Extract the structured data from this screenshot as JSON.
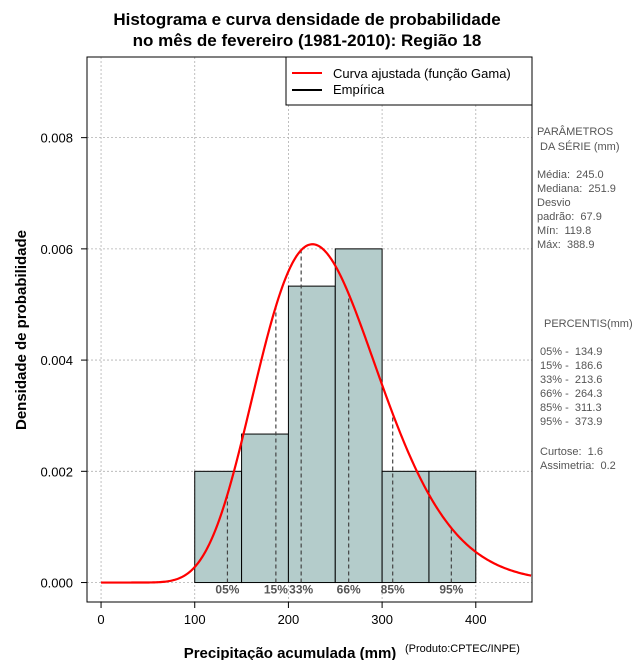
{
  "chart_data": {
    "type": "bar",
    "title_line1": "Histograma e curva densidade de probabilidade",
    "title_line2": "no mês de fevereiro (1981-2010): Região 18",
    "xlabel": "Precipitação acumulada (mm)",
    "ylabel": "Densidade de probabilidade",
    "credit": "(Produto:CPTEC/INPE)",
    "xlim": [
      -15,
      460
    ],
    "ylim": [
      -0.00035,
      0.00945
    ],
    "x_ticks": [
      0,
      100,
      200,
      300,
      400
    ],
    "x_tick_labels": [
      "0",
      "100",
      "200",
      "300",
      "400"
    ],
    "y_ticks": [
      0,
      0.002,
      0.004,
      0.006,
      0.008
    ],
    "y_tick_labels": [
      "0.000",
      "0.002",
      "0.004",
      "0.006",
      "0.008"
    ],
    "grid": true,
    "bins": [
      {
        "start": 100,
        "end": 150,
        "density": 0.002
      },
      {
        "start": 150,
        "end": 200,
        "density": 0.00267
      },
      {
        "start": 200,
        "end": 250,
        "density": 0.00533
      },
      {
        "start": 250,
        "end": 300,
        "density": 0.006
      },
      {
        "start": 300,
        "end": 350,
        "density": 0.002
      },
      {
        "start": 350,
        "end": 400,
        "density": 0.002
      }
    ],
    "gamma_fit": {
      "shape": 13.0,
      "scale": 18.8
    },
    "percentile_lines": [
      {
        "label": "05%",
        "value": 134.9
      },
      {
        "label": "15%",
        "value": 186.6
      },
      {
        "label": "33%",
        "value": 213.6
      },
      {
        "label": "66%",
        "value": 264.3
      },
      {
        "label": "85%",
        "value": 311.3
      },
      {
        "label": "95%",
        "value": 373.9
      }
    ],
    "legend": {
      "position": "top-right",
      "fitted_label": "Curva ajustada (função Gama)",
      "empirical_label": "Empírica"
    },
    "colors": {
      "bar_fill": "#b4cccb",
      "curve": "#ff0000",
      "grid": "#b0b0b0",
      "percentile_line": "#444444"
    }
  },
  "side_panel": {
    "params_title_1": "PARÂMETROS",
    "params_title_2": " DA SÉRIE (mm)",
    "media": "Média:  245.0",
    "mediana": "Mediana:  251.9",
    "desvio_1": "Desvio",
    "desvio_2": "padrão:  67.9",
    "min": "Mín:  119.8",
    "max": "Máx:  388.9",
    "percentis_title": "PERCENTIS(mm)",
    "p05": "05% -  134.9",
    "p15": "15% -  186.6",
    "p33": "33% -  213.6",
    "p66": "66% -  264.3",
    "p85": "85% -  311.3",
    "p95": "95% -  373.9",
    "curtose": "Curtose:  1.6",
    "assimetria": "Assimetria:  0.2"
  }
}
